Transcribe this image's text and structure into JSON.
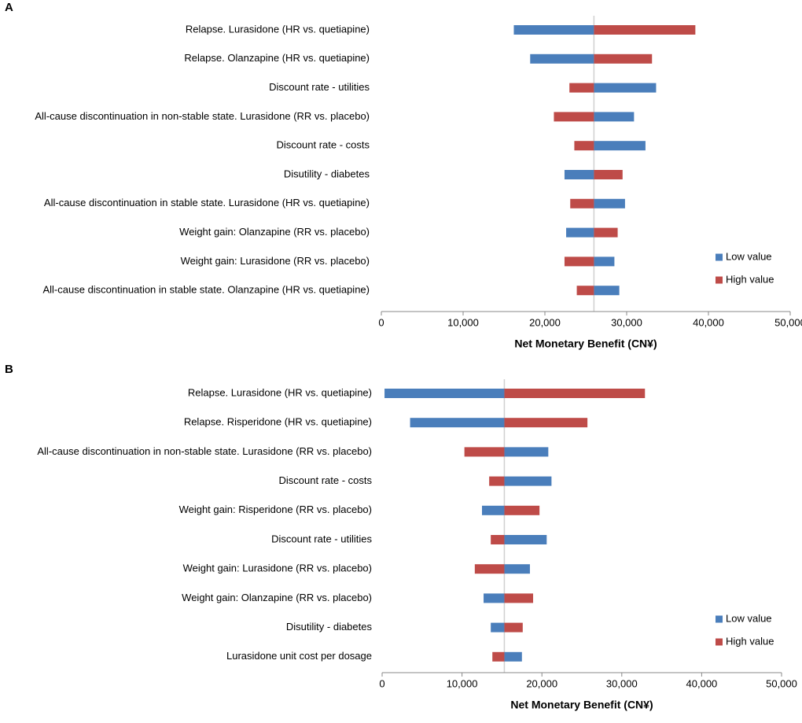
{
  "chart_data": [
    {
      "type": "bar",
      "panel": "A",
      "xlabel": "Net Monetary Benefit (CN¥)",
      "categories": [
        "Relapse. Lurasidone (HR vs. quetiapine)",
        "Relapse. Olanzapine (HR vs. quetiapine)",
        "Discount rate - utilities",
        "All-cause discontinuation in non-stable state. Lurasidone (RR vs. placebo)",
        "Discount rate - costs",
        "Disutility - diabetes",
        "All-cause discontinuation in stable state. Lurasidone (HR vs. quetiapine)",
        "Weight gain: Olanzapine (RR vs. placebo)",
        "Weight gain: Lurasidone (RR vs. placebo)",
        "All-cause discontinuation in stable state. Olanzapine (HR vs. quetiapine)"
      ],
      "base": 26000,
      "series": [
        {
          "name": "Low value",
          "color": "#4a7ebb",
          "values": [
            16200,
            18200,
            33600,
            30900,
            32300,
            22400,
            29800,
            22600,
            28500,
            29100
          ]
        },
        {
          "name": "High value",
          "color": "#be4b48",
          "values": [
            38400,
            33100,
            23000,
            21100,
            23600,
            29500,
            23100,
            28900,
            22400,
            23900
          ]
        }
      ],
      "xlim": [
        0,
        50000
      ],
      "xticks": [
        0,
        {
          "value": 10000,
          "label": "10,000"
        },
        {
          "value": 20000,
          "label": "20,000"
        },
        {
          "value": 30000,
          "label": "30,000"
        },
        {
          "value": 40000,
          "label": "40,000"
        },
        {
          "value": 50000,
          "label": "50,000"
        }
      ]
    },
    {
      "type": "bar",
      "panel": "B",
      "xlabel": "Net Monetary Benefit (CN¥)",
      "categories": [
        "Relapse. Lurasidone (HR vs. quetiapine)",
        "Relapse. Risperidone (HR vs. quetiapine)",
        "All-cause discontinuation in non-stable state. Lurasidone (RR vs. placebo)",
        "Discount rate - costs",
        "Weight gain: Risperidone (RR vs. placebo)",
        "Discount rate - utilities",
        "Weight gain: Lurasidone (RR vs. placebo)",
        "Weight gain: Olanzapine (RR vs. placebo)",
        "Disutility - diabetes",
        "Lurasidone unit cost per dosage"
      ],
      "base": 15300,
      "series": [
        {
          "name": "Low value",
          "color": "#4a7ebb",
          "values": [
            300,
            3500,
            20800,
            21200,
            12500,
            20600,
            18500,
            12700,
            13600,
            17500
          ]
        },
        {
          "name": "High value",
          "color": "#be4b48",
          "values": [
            32900,
            25700,
            10300,
            13400,
            19700,
            13600,
            11600,
            18900,
            17600,
            13800
          ]
        }
      ],
      "xlim": [
        0,
        50000
      ],
      "xticks": [
        0,
        {
          "value": 10000,
          "label": "10,000"
        },
        {
          "value": 20000,
          "label": "20,000"
        },
        {
          "value": 30000,
          "label": "30,000"
        },
        {
          "value": 40000,
          "label": "40,000"
        },
        {
          "value": 50000,
          "label": "50,000"
        }
      ]
    }
  ]
}
